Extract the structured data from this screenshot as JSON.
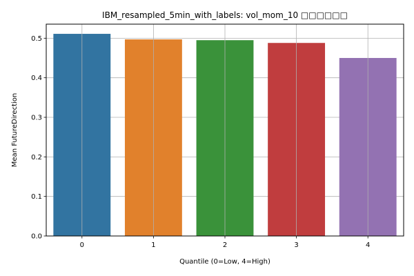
{
  "chart_data": {
    "type": "bar",
    "title": "IBM_resampled_5min_with_labels: vol_mom_10 □□□□□□",
    "xlabel": "Quantile (0=Low, 4=High)",
    "ylabel": "Mean FutureDirection",
    "categories": [
      "0",
      "1",
      "2",
      "3",
      "4"
    ],
    "values": [
      0.511,
      0.497,
      0.495,
      0.488,
      0.45
    ],
    "colors": [
      "#3274a1",
      "#e1812c",
      "#3a923a",
      "#c03d3e",
      "#9372b2"
    ],
    "ylim": [
      0,
      0.5355
    ],
    "yticks": [
      "0.0",
      "0.1",
      "0.2",
      "0.3",
      "0.4",
      "0.5"
    ],
    "grid": true
  }
}
